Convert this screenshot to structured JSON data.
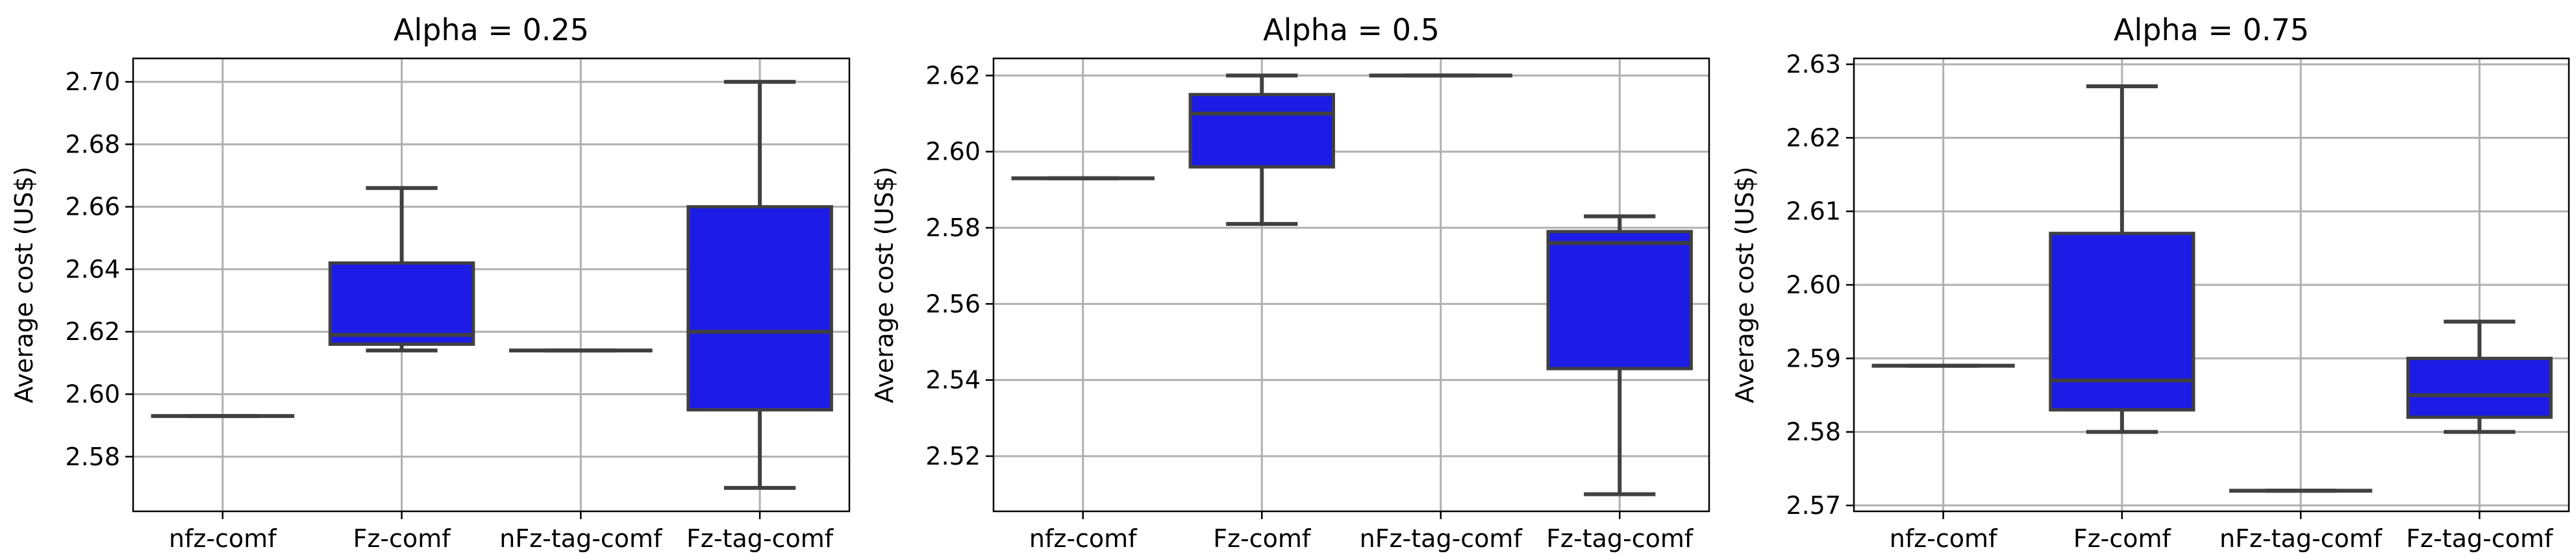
{
  "colors": {
    "box_fill": "#1c1ce6",
    "box_edge": "#404040",
    "whisker": "#404040",
    "grid": "#b0b0b0",
    "frame": "#000000"
  },
  "chart_data": [
    {
      "type": "box",
      "title": "Alpha = 0.25",
      "xlabel": "",
      "ylabel": "Average cost (US$)",
      "categories": [
        "nfz-comf",
        "Fz-comf",
        "nFz-tag-comf",
        "Fz-tag-comf"
      ],
      "ylim": [
        2.5625,
        2.7075
      ],
      "yticks": [
        2.58,
        2.6,
        2.62,
        2.64,
        2.66,
        2.68,
        2.7
      ],
      "ytick_labels": [
        "2.58",
        "2.60",
        "2.62",
        "2.64",
        "2.66",
        "2.68",
        "2.70"
      ],
      "grid": true,
      "boxes": [
        {
          "min": 2.593,
          "q1": 2.593,
          "median": 2.593,
          "q3": 2.593,
          "max": 2.593
        },
        {
          "min": 2.614,
          "q1": 2.616,
          "median": 2.619,
          "q3": 2.642,
          "max": 2.666
        },
        {
          "min": 2.614,
          "q1": 2.614,
          "median": 2.614,
          "q3": 2.614,
          "max": 2.614
        },
        {
          "min": 2.57,
          "q1": 2.595,
          "median": 2.62,
          "q3": 2.66,
          "max": 2.7
        }
      ]
    },
    {
      "type": "box",
      "title": "Alpha = 0.5",
      "xlabel": "",
      "ylabel": "Average cost (US$)",
      "categories": [
        "nfz-comf",
        "Fz-comf",
        "nFz-tag-comf",
        "Fz-tag-comf"
      ],
      "ylim": [
        2.5055,
        2.6245
      ],
      "yticks": [
        2.52,
        2.54,
        2.56,
        2.58,
        2.6,
        2.62
      ],
      "ytick_labels": [
        "2.52",
        "2.54",
        "2.56",
        "2.58",
        "2.60",
        "2.62"
      ],
      "grid": true,
      "boxes": [
        {
          "min": 2.593,
          "q1": 2.593,
          "median": 2.593,
          "q3": 2.593,
          "max": 2.593
        },
        {
          "min": 2.581,
          "q1": 2.596,
          "median": 2.61,
          "q3": 2.615,
          "max": 2.62
        },
        {
          "min": 2.62,
          "q1": 2.62,
          "median": 2.62,
          "q3": 2.62,
          "max": 2.62
        },
        {
          "min": 2.51,
          "q1": 2.543,
          "median": 2.576,
          "q3": 2.579,
          "max": 2.583
        }
      ]
    },
    {
      "type": "box",
      "title": "Alpha = 0.75",
      "xlabel": "",
      "ylabel": "Average cost (US$)",
      "categories": [
        "nfz-comf",
        "Fz-comf",
        "nFz-tag-comf",
        "Fz-tag-comf"
      ],
      "ylim": [
        2.5692,
        2.6308
      ],
      "yticks": [
        2.57,
        2.58,
        2.59,
        2.6,
        2.61,
        2.62,
        2.63
      ],
      "ytick_labels": [
        "2.57",
        "2.58",
        "2.59",
        "2.60",
        "2.61",
        "2.62",
        "2.63"
      ],
      "grid": true,
      "boxes": [
        {
          "min": 2.589,
          "q1": 2.589,
          "median": 2.589,
          "q3": 2.589,
          "max": 2.589
        },
        {
          "min": 2.58,
          "q1": 2.583,
          "median": 2.587,
          "q3": 2.607,
          "max": 2.627
        },
        {
          "min": 2.572,
          "q1": 2.572,
          "median": 2.572,
          "q3": 2.572,
          "max": 2.572
        },
        {
          "min": 2.58,
          "q1": 2.582,
          "median": 2.585,
          "q3": 2.59,
          "max": 2.595
        }
      ]
    }
  ]
}
